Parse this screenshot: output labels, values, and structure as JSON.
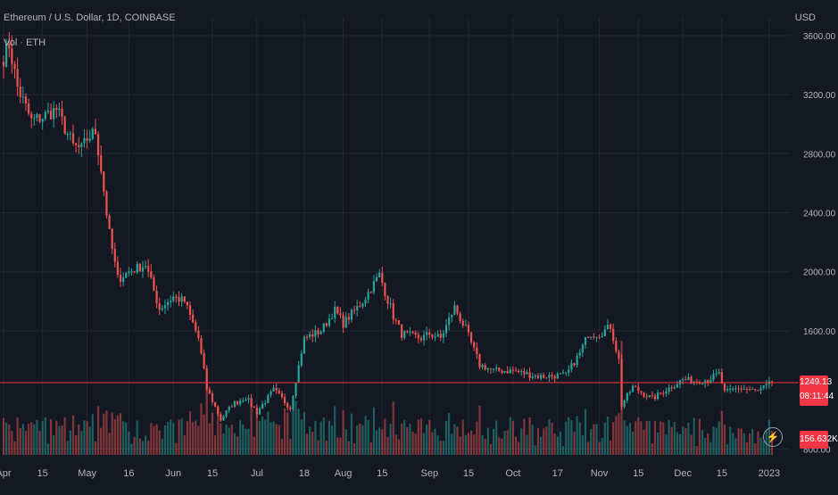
{
  "header": {
    "symbol_title": "Ethereum / U.S. Dollar, 1D, COINBASE",
    "volume_label": "Vol · ETH",
    "currency": "USD"
  },
  "price_tag": {
    "price": "1249.13",
    "countdown": "08:11:44"
  },
  "volume_tag": "156.632K",
  "icons": {
    "alert": "lightning-icon"
  },
  "colors": {
    "background": "#141823",
    "up": "#26a69a",
    "down": "#ef5350",
    "grid": "#232734",
    "last_price_line": "#f23645"
  },
  "chart_data": {
    "type": "candlestick",
    "y_unit": "USD",
    "ylim": [
      760,
      3720
    ],
    "y_ticks": [
      {
        "value": 3600,
        "label": "3600.00"
      },
      {
        "value": 3200,
        "label": "3200.00"
      },
      {
        "value": 2800,
        "label": "2800.00"
      },
      {
        "value": 2400,
        "label": "2400.00"
      },
      {
        "value": 2000,
        "label": "2000.00"
      },
      {
        "value": 1600,
        "label": "1600.00"
      },
      {
        "value": 800,
        "label": "800.00"
      }
    ],
    "x_range": [
      "2022-04-01",
      "2023-01-02"
    ],
    "x_ticks": [
      {
        "date": "2022-04-01",
        "label": "Apr"
      },
      {
        "date": "2022-04-15",
        "label": "15"
      },
      {
        "date": "2022-05-01",
        "label": "May"
      },
      {
        "date": "2022-05-16",
        "label": "16"
      },
      {
        "date": "2022-06-01",
        "label": "Jun"
      },
      {
        "date": "2022-06-15",
        "label": "15"
      },
      {
        "date": "2022-07-01",
        "label": "Jul"
      },
      {
        "date": "2022-07-18",
        "label": "18"
      },
      {
        "date": "2022-08-01",
        "label": "Aug"
      },
      {
        "date": "2022-08-15",
        "label": "15"
      },
      {
        "date": "2022-09-01",
        "label": "Sep"
      },
      {
        "date": "2022-09-15",
        "label": "15"
      },
      {
        "date": "2022-10-01",
        "label": "Oct"
      },
      {
        "date": "2022-10-17",
        "label": "17"
      },
      {
        "date": "2022-11-01",
        "label": "Nov"
      },
      {
        "date": "2022-11-15",
        "label": "15"
      },
      {
        "date": "2022-12-01",
        "label": "Dec"
      },
      {
        "date": "2022-12-15",
        "label": "15"
      },
      {
        "date": "2023-01-01",
        "label": "2023"
      }
    ],
    "last_price": 1249.13,
    "close_anchors": [
      [
        "2022-04-01",
        3450
      ],
      [
        "2022-04-03",
        3540
      ],
      [
        "2022-04-06",
        3250
      ],
      [
        "2022-04-11",
        3020
      ],
      [
        "2022-04-15",
        3050
      ],
      [
        "2022-04-20",
        3100
      ],
      [
        "2022-04-26",
        2850
      ],
      [
        "2022-04-29",
        2830
      ],
      [
        "2022-05-01",
        2900
      ],
      [
        "2022-05-04",
        2950
      ],
      [
        "2022-05-06",
        2700
      ],
      [
        "2022-05-09",
        2250
      ],
      [
        "2022-05-12",
        1950
      ],
      [
        "2022-05-16",
        2000
      ],
      [
        "2022-05-22",
        2050
      ],
      [
        "2022-05-27",
        1750
      ],
      [
        "2022-06-01",
        1830
      ],
      [
        "2022-06-05",
        1800
      ],
      [
        "2022-06-10",
        1550
      ],
      [
        "2022-06-13",
        1210
      ],
      [
        "2022-06-18",
        1000
      ],
      [
        "2022-06-22",
        1100
      ],
      [
        "2022-06-27",
        1150
      ],
      [
        "2022-07-01",
        1050
      ],
      [
        "2022-07-07",
        1200
      ],
      [
        "2022-07-13",
        1080
      ],
      [
        "2022-07-18",
        1550
      ],
      [
        "2022-07-24",
        1600
      ],
      [
        "2022-07-29",
        1740
      ],
      [
        "2022-08-01",
        1650
      ],
      [
        "2022-08-08",
        1800
      ],
      [
        "2022-08-14",
        1980
      ],
      [
        "2022-08-19",
        1700
      ],
      [
        "2022-08-22",
        1580
      ],
      [
        "2022-08-29",
        1550
      ],
      [
        "2022-09-01",
        1580
      ],
      [
        "2022-09-05",
        1550
      ],
      [
        "2022-09-10",
        1760
      ],
      [
        "2022-09-14",
        1610
      ],
      [
        "2022-09-19",
        1370
      ],
      [
        "2022-09-24",
        1330
      ],
      [
        "2022-10-01",
        1330
      ],
      [
        "2022-10-10",
        1290
      ],
      [
        "2022-10-20",
        1300
      ],
      [
        "2022-10-25",
        1450
      ],
      [
        "2022-10-28",
        1580
      ],
      [
        "2022-11-01",
        1580
      ],
      [
        "2022-11-05",
        1630
      ],
      [
        "2022-11-08",
        1400
      ],
      [
        "2022-11-09",
        1100
      ],
      [
        "2022-11-13",
        1220
      ],
      [
        "2022-11-20",
        1140
      ],
      [
        "2022-11-24",
        1190
      ],
      [
        "2022-12-01",
        1270
      ],
      [
        "2022-12-05",
        1260
      ],
      [
        "2022-12-10",
        1270
      ],
      [
        "2022-12-14",
        1310
      ],
      [
        "2022-12-16",
        1180
      ],
      [
        "2022-12-21",
        1215
      ],
      [
        "2022-12-28",
        1190
      ],
      [
        "2023-01-02",
        1249
      ]
    ],
    "volume_note": "daily volume bars, colored by candle direction"
  }
}
